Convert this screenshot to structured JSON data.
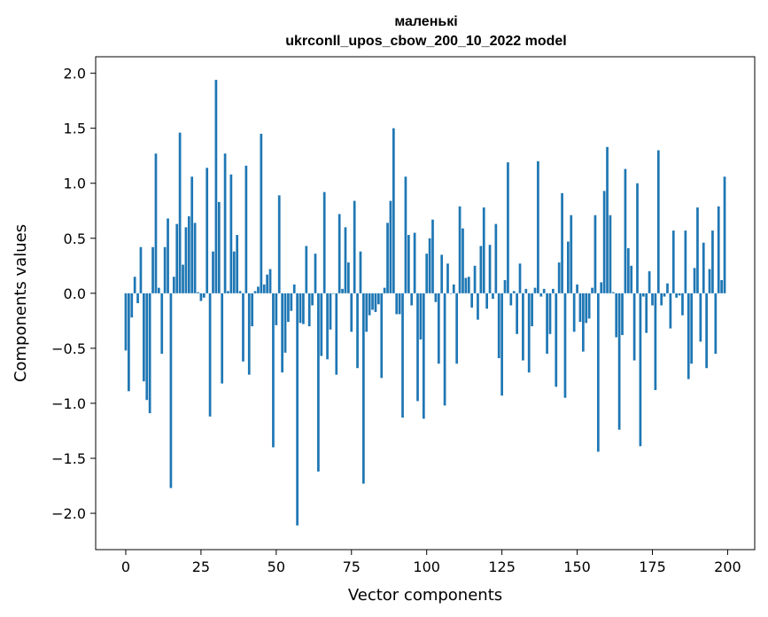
{
  "chart_data": {
    "type": "bar",
    "title_line1": "маленькі",
    "title_line2": "ukrconll_upos_cbow_200_10_2022 model",
    "xlabel": "Vector components",
    "ylabel": "Components values",
    "xlim": [
      -10,
      209
    ],
    "ylim": [
      -2.33,
      2.15
    ],
    "x_ticks": [
      0,
      25,
      50,
      75,
      100,
      125,
      150,
      175,
      200
    ],
    "y_ticks": [
      -2.0,
      -1.5,
      -1.0,
      -0.5,
      0.0,
      0.5,
      1.0,
      1.5,
      2.0
    ],
    "y_tick_labels": [
      "−2.0",
      "−1.5",
      "−1.0",
      "−0.5",
      "0.0",
      "0.5",
      "1.0",
      "1.5",
      "2.0"
    ],
    "x_tick_labels": [
      "0",
      "25",
      "50",
      "75",
      "100",
      "125",
      "150",
      "175",
      "200"
    ],
    "bar_color": "#1f77b4",
    "grid": false,
    "values": [
      -0.52,
      -0.89,
      -0.22,
      0.15,
      -0.09,
      0.42,
      -0.8,
      -0.97,
      -1.09,
      0.42,
      1.27,
      0.05,
      -0.55,
      0.42,
      0.68,
      -1.77,
      0.15,
      0.63,
      1.46,
      0.26,
      0.6,
      0.7,
      1.06,
      0.64,
      0.01,
      -0.07,
      -0.04,
      1.14,
      -1.12,
      0.38,
      1.94,
      0.83,
      -0.82,
      1.27,
      0.02,
      1.08,
      0.38,
      0.53,
      0.02,
      -0.62,
      1.16,
      -0.74,
      -0.3,
      0.02,
      0.06,
      1.45,
      0.08,
      0.17,
      0.22,
      -1.4,
      -0.29,
      0.89,
      -0.72,
      -0.54,
      -0.26,
      -0.16,
      0.08,
      -2.11,
      -0.27,
      -0.28,
      0.43,
      -0.3,
      -0.11,
      0.36,
      -1.62,
      -0.57,
      0.92,
      -0.6,
      -0.33,
      0.0,
      -0.74,
      0.72,
      0.04,
      0.6,
      0.28,
      -0.35,
      0.84,
      -0.68,
      0.38,
      -1.73,
      -0.35,
      -0.2,
      -0.15,
      -0.17,
      -0.1,
      -0.77,
      0.05,
      0.64,
      0.84,
      1.5,
      -0.19,
      -0.19,
      -1.13,
      1.06,
      0.53,
      -0.11,
      0.55,
      -0.98,
      -0.42,
      -1.14,
      0.36,
      0.5,
      0.67,
      -0.08,
      -0.64,
      0.35,
      -1.02,
      0.27,
      0.0,
      0.08,
      -0.64,
      0.79,
      0.59,
      0.14,
      0.15,
      -0.13,
      0.25,
      -0.24,
      0.43,
      0.78,
      -0.14,
      0.44,
      -0.05,
      0.63,
      -0.59,
      -0.93,
      0.12,
      1.19,
      -0.11,
      0.02,
      -0.37,
      0.27,
      -0.61,
      0.04,
      -0.72,
      -0.3,
      0.05,
      1.2,
      -0.03,
      0.04,
      -0.55,
      -0.37,
      0.04,
      -0.85,
      0.28,
      0.91,
      -0.95,
      0.47,
      0.71,
      -0.35,
      0.08,
      -0.26,
      -0.53,
      -0.27,
      -0.23,
      0.05,
      0.71,
      -1.44,
      0.1,
      0.93,
      1.33,
      0.71,
      0.01,
      -0.4,
      -1.24,
      -0.38,
      1.13,
      0.41,
      0.25,
      -0.61,
      1.0,
      -1.39,
      -0.03,
      -0.36,
      0.2,
      -0.11,
      -0.88,
      1.3,
      -0.11,
      -0.03,
      0.09,
      -0.32,
      0.57,
      -0.04,
      -0.02,
      -0.2,
      0.57,
      -0.78,
      -0.64,
      0.23,
      0.78,
      -0.44,
      0.46,
      -0.68,
      0.22,
      0.57,
      -0.55,
      0.79,
      0.12,
      1.06
    ]
  }
}
